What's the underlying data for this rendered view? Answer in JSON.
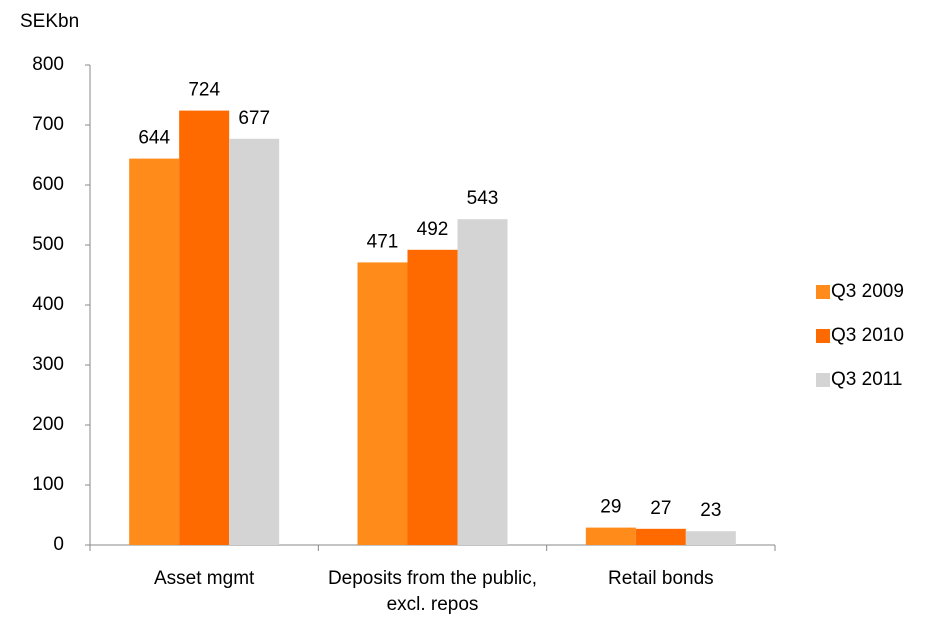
{
  "chart_data": {
    "type": "bar",
    "y_label": "SEKbn",
    "categories": [
      "Asset mgmt",
      "Deposits from the public, excl. repos",
      "Retail bonds"
    ],
    "series": [
      {
        "name": "Q3 2009",
        "color": "#ff8b1a",
        "values": [
          644,
          471,
          29
        ]
      },
      {
        "name": "Q3 2010",
        "color": "#ff6a00",
        "values": [
          724,
          492,
          27
        ]
      },
      {
        "name": "Q3 2011",
        "color": "#d4d4d4",
        "values": [
          677,
          543,
          23
        ]
      }
    ],
    "ylim": [
      0,
      800
    ],
    "yticks": [
      0,
      100,
      200,
      300,
      400,
      500,
      600,
      700,
      800
    ],
    "legend": "right"
  }
}
